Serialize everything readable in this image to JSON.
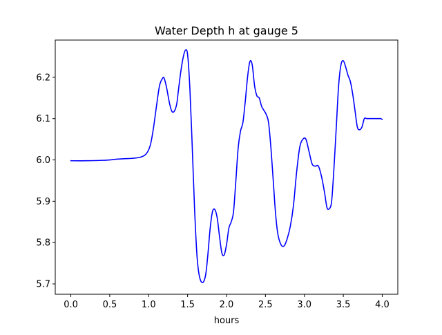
{
  "chart_data": {
    "type": "line",
    "title": "Water Depth h at gauge 5",
    "xlabel": "hours",
    "ylabel": "",
    "xlim": [
      -0.2,
      4.2
    ],
    "ylim": [
      5.675,
      6.29
    ],
    "xticks": [
      0.0,
      0.5,
      1.0,
      1.5,
      2.0,
      2.5,
      3.0,
      3.5,
      4.0
    ],
    "xtick_labels": [
      "0.0",
      "0.5",
      "1.0",
      "1.5",
      "2.0",
      "2.5",
      "3.0",
      "3.5",
      "4.0"
    ],
    "yticks": [
      5.7,
      5.8,
      5.9,
      6.0,
      6.1,
      6.2
    ],
    "ytick_labels": [
      "5.7",
      "5.8",
      "5.9",
      "6.0",
      "6.1",
      "6.2"
    ],
    "grid": false,
    "series": [
      {
        "color": "#0000ff",
        "x": [
          0.0,
          0.2,
          0.4,
          0.5,
          0.6,
          0.7,
          0.8,
          0.9,
          0.97,
          1.02,
          1.06,
          1.1,
          1.14,
          1.18,
          1.2,
          1.23,
          1.27,
          1.3,
          1.33,
          1.36,
          1.38,
          1.41,
          1.44,
          1.47,
          1.5,
          1.53,
          1.56,
          1.59,
          1.62,
          1.65,
          1.69,
          1.73,
          1.76,
          1.79,
          1.82,
          1.85,
          1.88,
          1.91,
          1.94,
          1.97,
          2.0,
          2.03,
          2.06,
          2.09,
          2.12,
          2.15,
          2.18,
          2.21,
          2.24,
          2.27,
          2.3,
          2.33,
          2.36,
          2.39,
          2.42,
          2.45,
          2.48,
          2.51,
          2.54,
          2.57,
          2.6,
          2.63,
          2.66,
          2.7,
          2.74,
          2.78,
          2.82,
          2.86,
          2.9,
          2.94,
          2.98,
          3.02,
          3.06,
          3.1,
          3.14,
          3.18,
          3.22,
          3.26,
          3.29,
          3.32,
          3.35,
          3.38,
          3.41,
          3.44,
          3.47,
          3.5,
          3.53,
          3.56,
          3.59,
          3.62,
          3.65,
          3.68,
          3.71,
          3.74,
          3.77,
          3.8,
          3.83,
          3.86,
          3.89,
          3.92,
          3.95,
          3.98,
          4.0
        ],
        "y": [
          5.998,
          5.998,
          5.999,
          6.0,
          6.002,
          6.003,
          6.004,
          6.007,
          6.015,
          6.035,
          6.075,
          6.13,
          6.18,
          6.198,
          6.197,
          6.175,
          6.135,
          6.117,
          6.118,
          6.135,
          6.165,
          6.21,
          6.245,
          6.265,
          6.255,
          6.17,
          6.03,
          5.88,
          5.77,
          5.72,
          5.703,
          5.72,
          5.77,
          5.835,
          5.875,
          5.88,
          5.86,
          5.815,
          5.775,
          5.77,
          5.795,
          5.835,
          5.85,
          5.875,
          5.95,
          6.03,
          6.07,
          6.09,
          6.14,
          6.2,
          6.238,
          6.23,
          6.18,
          6.155,
          6.15,
          6.13,
          6.12,
          6.11,
          6.09,
          6.03,
          5.95,
          5.87,
          5.82,
          5.795,
          5.792,
          5.81,
          5.84,
          5.89,
          5.97,
          6.03,
          6.05,
          6.05,
          6.02,
          5.99,
          5.985,
          5.985,
          5.96,
          5.92,
          5.885,
          5.882,
          5.9,
          5.98,
          6.08,
          6.18,
          6.23,
          6.24,
          6.225,
          6.205,
          6.19,
          6.16,
          6.12,
          6.08,
          6.073,
          6.08,
          6.1,
          6.1,
          6.1,
          6.1,
          6.1,
          6.1,
          6.1,
          6.1,
          6.098
        ]
      }
    ]
  }
}
